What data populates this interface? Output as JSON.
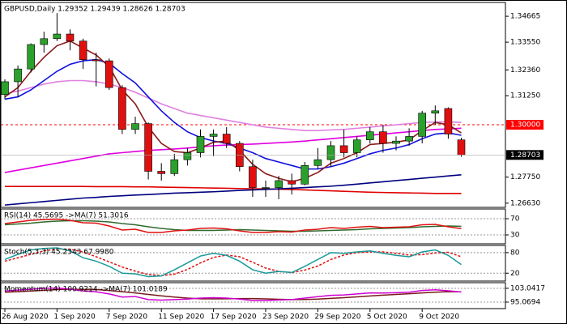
{
  "chart_data": [
    {
      "type": "candlestick",
      "title": "GBPUSD,Daily  1.29352 1.29439 1.28626 1.28703",
      "categories": [
        "26 Aug 2020",
        null,
        null,
        null,
        "1 Sep 2020",
        null,
        null,
        null,
        "7 Sep 2020",
        null,
        null,
        null,
        "11 Sep 2020",
        null,
        null,
        null,
        "17 Sep 2020",
        null,
        null,
        null,
        "23 Sep 2020",
        null,
        null,
        null,
        "29 Sep 2020",
        null,
        null,
        null,
        "5 Oct 2020",
        null,
        null,
        null,
        "9 Oct 2020",
        null,
        null,
        null
      ],
      "open": [
        1.313,
        1.3185,
        1.324,
        1.3345,
        1.337,
        1.339,
        1.336,
        1.328,
        1.3275,
        1.316,
        1.298,
        1.3005,
        1.28,
        1.279,
        1.285,
        1.288,
        1.295,
        1.296,
        1.292,
        1.282,
        1.273,
        1.273,
        1.276,
        1.2745,
        1.2825,
        1.285,
        1.291,
        1.288,
        1.2935,
        1.297,
        1.292,
        1.293,
        1.295,
        1.305,
        1.307,
        1.29352
      ],
      "high": [
        1.3195,
        1.3255,
        1.335,
        1.34,
        1.348,
        1.341,
        1.337,
        1.331,
        1.3285,
        1.317,
        1.3035,
        1.301,
        1.2835,
        1.2875,
        1.29,
        1.298,
        1.298,
        1.299,
        1.293,
        1.285,
        1.276,
        1.278,
        1.279,
        1.284,
        1.29,
        1.293,
        1.298,
        1.295,
        1.299,
        1.3,
        1.295,
        1.2985,
        1.306,
        1.3083,
        1.3075,
        1.29439
      ],
      "low": [
        1.311,
        1.312,
        1.3225,
        1.331,
        1.336,
        1.332,
        1.324,
        1.3165,
        1.315,
        1.296,
        1.296,
        1.2765,
        1.276,
        1.278,
        1.2825,
        1.286,
        1.2865,
        1.29,
        1.28,
        1.269,
        1.269,
        1.268,
        1.27,
        1.274,
        1.281,
        1.282,
        1.286,
        1.286,
        1.292,
        1.288,
        1.289,
        1.291,
        1.292,
        1.3,
        1.294,
        1.28626
      ],
      "close": [
        1.3185,
        1.324,
        1.3345,
        1.337,
        1.339,
        1.336,
        1.328,
        1.3275,
        1.316,
        1.298,
        1.3005,
        1.28,
        1.279,
        1.285,
        1.288,
        1.295,
        1.296,
        1.292,
        1.282,
        1.273,
        1.273,
        1.276,
        1.2745,
        1.2825,
        1.285,
        1.291,
        1.288,
        1.2935,
        1.297,
        1.292,
        1.293,
        1.295,
        1.305,
        1.306,
        1.296,
        1.28703
      ],
      "up_color": "#2ca02c",
      "down_color": "#e01010",
      "series": [
        {
          "color": "#e080e0",
          "values": [
            1.3135,
            1.3145,
            1.316,
            1.3175,
            1.3185,
            1.319,
            1.319,
            1.3185,
            1.3175,
            1.316,
            1.314,
            1.3115,
            1.309,
            1.307,
            1.305,
            1.304,
            1.303,
            1.302,
            1.301,
            1.3,
            1.299,
            1.2985,
            1.298,
            1.2975,
            1.2975,
            1.2978,
            1.298,
            1.2985,
            1.299,
            1.2995,
            1.3,
            1.3005,
            1.301,
            1.3012,
            1.3012,
            1.301
          ]
        },
        {
          "color": "#e000e0",
          "values": [
            1.2795,
            1.2805,
            1.2815,
            1.2825,
            1.2835,
            1.2845,
            1.2855,
            1.2865,
            1.2875,
            1.288,
            1.2885,
            1.289,
            1.2893,
            1.2896,
            1.29,
            1.2905,
            1.291,
            1.2913,
            1.2915,
            1.2917,
            1.292,
            1.2923,
            1.2926,
            1.293,
            1.2935,
            1.294,
            1.2945,
            1.295,
            1.2955,
            1.296,
            1.2965,
            1.297,
            1.2975,
            1.298,
            1.2982,
            1.2985
          ]
        },
        {
          "color": "#e00000",
          "values": [
            1.2735,
            1.2735,
            1.2735,
            1.2735,
            1.2735,
            1.2735,
            1.2735,
            1.2734,
            1.2734,
            1.2734,
            1.2733,
            1.2733,
            1.2732,
            1.2731,
            1.273,
            1.2729,
            1.2728,
            1.2727,
            1.2726,
            1.2725,
            1.2724,
            1.2723,
            1.2722,
            1.272,
            1.2718,
            1.2716,
            1.2714,
            1.2712,
            1.271,
            1.2709,
            1.2708,
            1.2707,
            1.2706,
            1.2705,
            1.2705,
            1.2705
          ]
        },
        {
          "color": "#000080",
          "values": [
            1.2655,
            1.266,
            1.2665,
            1.267,
            1.2675,
            1.268,
            1.2685,
            1.2688,
            1.2692,
            1.2695,
            1.2698,
            1.27,
            1.2703,
            1.2706,
            1.2708,
            1.271,
            1.2712,
            1.2715,
            1.2718,
            1.272,
            1.2722,
            1.2725,
            1.2727,
            1.273,
            1.2733,
            1.2736,
            1.274,
            1.2745,
            1.275,
            1.2755,
            1.276,
            1.2765,
            1.277,
            1.2775,
            1.278,
            1.2785
          ]
        },
        {
          "color": "#1010e0",
          "values": [
            1.311,
            1.312,
            1.315,
            1.319,
            1.323,
            1.326,
            1.3275,
            1.328,
            1.3265,
            1.322,
            1.318,
            1.312,
            1.306,
            1.301,
            1.297,
            1.2945,
            1.293,
            1.292,
            1.29,
            1.288,
            1.2855,
            1.284,
            1.2825,
            1.281,
            1.281,
            1.282,
            1.2835,
            1.2855,
            1.2875,
            1.289,
            1.29,
            1.2915,
            1.294,
            1.296,
            1.2965,
            1.2955
          ]
        },
        {
          "color": "#8b1a1a",
          "values": [
            1.312,
            1.316,
            1.323,
            1.329,
            1.334,
            1.336,
            1.333,
            1.33,
            1.325,
            1.315,
            1.309,
            1.299,
            1.292,
            1.2885,
            1.288,
            1.29,
            1.2925,
            1.293,
            1.289,
            1.283,
            1.279,
            1.277,
            1.2755,
            1.277,
            1.2795,
            1.2835,
            1.2855,
            1.288,
            1.2915,
            1.292,
            1.2925,
            1.2935,
            1.2975,
            1.301,
            1.3,
            1.2965
          ]
        }
      ],
      "hlines": [
        {
          "value": 1.3,
          "label": "1.30000",
          "color": "#ff0000"
        }
      ],
      "price_color": "#000000",
      "ylim": [
        1.2645,
        1.3526
      ],
      "yticks": [
        1.34665,
        {
          "value": 1.3355,
          "label": "1.33550"
        },
        {
          "value": 1.3236,
          "label": "1.32360"
        },
        {
          "value": 1.3125,
          "label": "1.31250"
        },
        {
          "value": 1.2775,
          "label": "1.27750"
        },
        {
          "value": 1.2663,
          "label": "1.26630"
        }
      ]
    },
    {
      "type": "line",
      "title": "RSI(14) 45.5695 ->MA(7) 51.3016",
      "series": [
        {
          "color": "#2e6b2e",
          "values": [
            55,
            57,
            59,
            62,
            64,
            65,
            65,
            64,
            62,
            58,
            55,
            50,
            46,
            43,
            41,
            41,
            41,
            42,
            43,
            42,
            41,
            40,
            39,
            39,
            40,
            41,
            42,
            43,
            45,
            46,
            47,
            48,
            50,
            51,
            52,
            51.3016
          ]
        },
        {
          "color": "#e01010",
          "values": [
            58,
            62,
            66,
            68,
            69,
            66,
            60,
            59,
            52,
            42,
            44,
            36,
            36,
            40,
            42,
            46,
            47,
            45,
            40,
            36,
            36,
            38,
            37,
            42,
            44,
            48,
            46,
            49,
            51,
            48,
            49,
            50,
            55,
            56,
            50,
            45.5695
          ]
        }
      ],
      "ylim": [
        8,
        94
      ],
      "yticks": [
        70,
        30
      ],
      "grid": true
    },
    {
      "type": "line",
      "title": "Stoch(5,3,3) 45.2343 67.9980",
      "series": [
        {
          "color": "#e01010",
          "dashed": true,
          "values": [
            55,
            65,
            75,
            85,
            91,
            90,
            82,
            68,
            53,
            38,
            26,
            16,
            13,
            17,
            31,
            50,
            66,
            73,
            68,
            52,
            35,
            25,
            22,
            29,
            41,
            60,
            73,
            80,
            82,
            82,
            78,
            73,
            74,
            79,
            81,
            67.998
          ]
        },
        {
          "color": "#1a9a9a",
          "values": [
            60,
            75,
            88,
            92,
            94,
            85,
            65,
            55,
            40,
            20,
            18,
            10,
            12,
            30,
            50,
            70,
            78,
            72,
            55,
            30,
            20,
            25,
            22,
            40,
            60,
            80,
            78,
            82,
            85,
            78,
            72,
            68,
            82,
            88,
            72,
            45.2343
          ]
        }
      ],
      "ylim": [
        -3,
        101
      ],
      "yticks": [
        80,
        20
      ],
      "grid": true
    },
    {
      "type": "line",
      "title": "Momentum(14) 100.9214 ->MA(7) 101.0189",
      "series": [
        {
          "color": "#7a1a1a",
          "values": [
            100.8,
            101.1,
            101.5,
            101.9,
            102.3,
            102.5,
            102.4,
            102.3,
            101.8,
            101.1,
            100.4,
            99.5,
            98.7,
            98,
            97.4,
            97,
            96.9,
            97,
            97.1,
            97.1,
            96.9,
            96.7,
            96.5,
            96.6,
            96.8,
            97.2,
            97.6,
            98.1,
            98.6,
            99.1,
            99.5,
            99.9,
            100.4,
            100.8,
            101.1,
            101.0189
          ]
        },
        {
          "color": "#d000d0",
          "values": [
            101.5,
            102,
            102.5,
            103,
            103.2,
            102.6,
            101.5,
            101,
            99.8,
            98,
            98.3,
            96.5,
            96.2,
            96.5,
            96.8,
            97.4,
            97.6,
            97.4,
            96.8,
            96,
            96,
            96.3,
            96.5,
            97.4,
            98.2,
            99,
            99.2,
            99.8,
            100.4,
            100.3,
            100.5,
            100.8,
            101.8,
            102.2,
            101.6,
            100.9214
          ]
        }
      ],
      "ylim": [
        91.3,
        106.3
      ],
      "yticks": [
        103.0417,
        95.0694
      ],
      "grid": true
    }
  ]
}
